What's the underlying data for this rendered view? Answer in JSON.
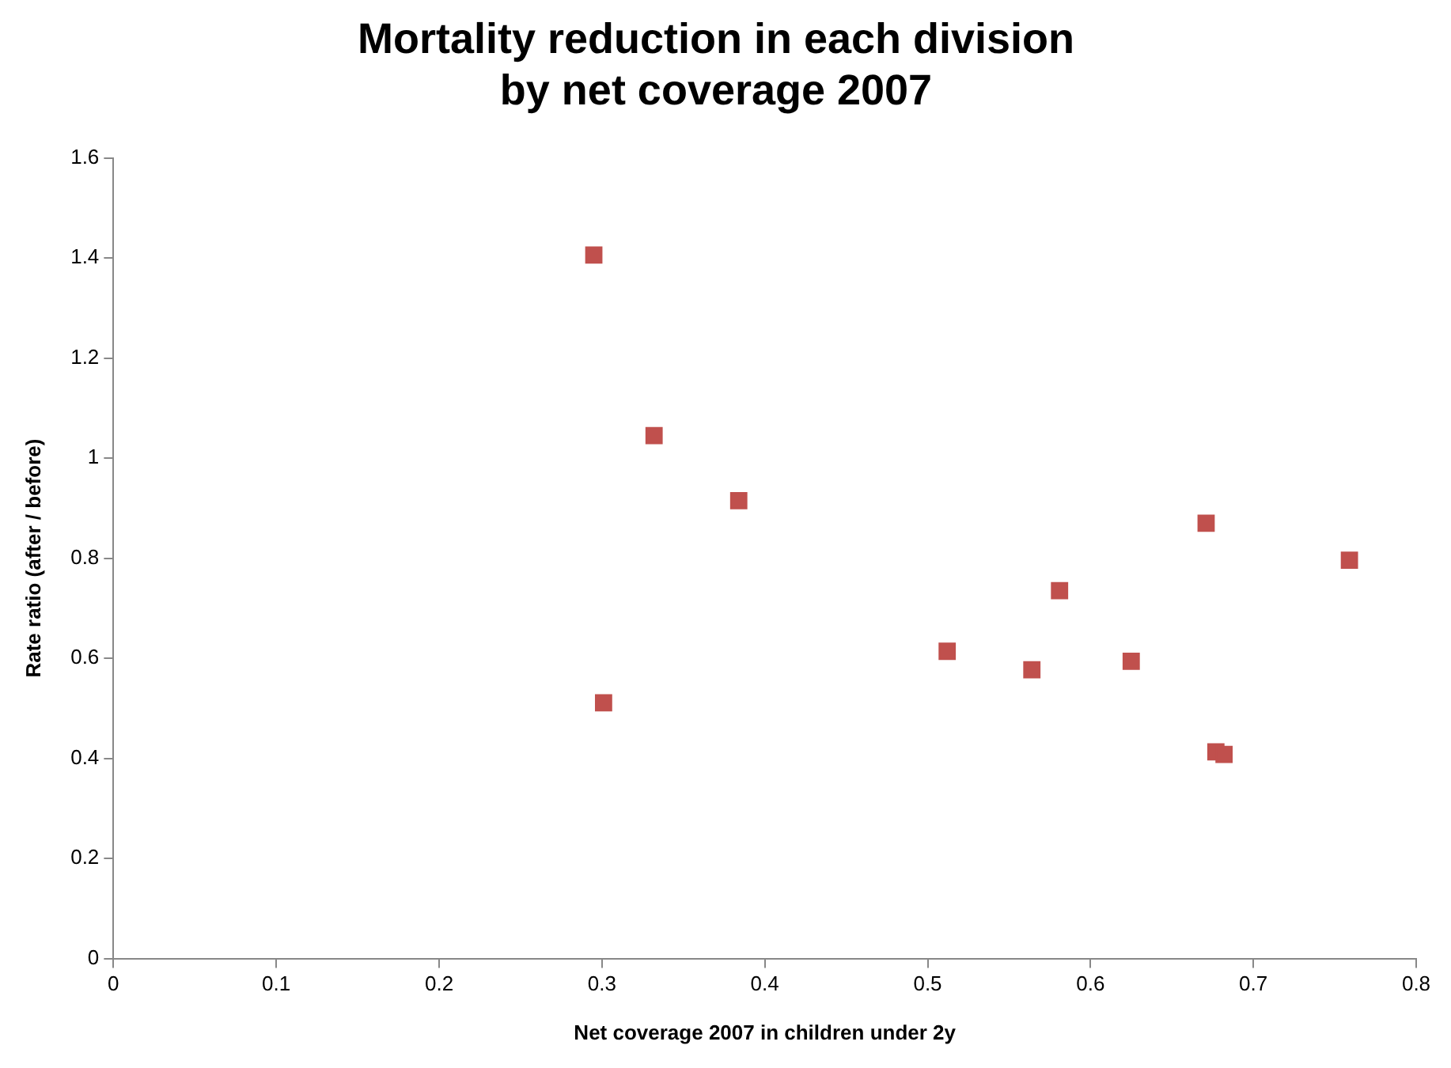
{
  "chart_data": {
    "type": "scatter",
    "title": "Mortality reduction in each division\nby net coverage 2007",
    "xlabel": "Net coverage 2007 in children under 2y",
    "ylabel": "Rate ratio (after / before)",
    "series": [
      {
        "color": "#c0504d",
        "x": [
          0.295,
          0.332,
          0.384,
          0.301,
          0.512,
          0.564,
          0.581,
          0.625,
          0.671,
          0.759,
          0.677,
          0.682
        ],
        "values": [
          1.406,
          1.045,
          0.915,
          0.511,
          0.614,
          0.577,
          0.735,
          0.594,
          0.87,
          0.796,
          0.413,
          0.408
        ]
      }
    ],
    "xlim": [
      0,
      0.8
    ],
    "xticks": [
      0,
      0.1,
      0.2,
      0.3,
      0.4,
      0.5,
      0.6,
      0.7,
      0.8
    ],
    "ylim": [
      0,
      1.6
    ],
    "yticks": [
      0,
      0.2,
      0.4,
      0.6,
      0.8,
      1,
      1.2,
      1.4,
      1.6
    ],
    "grid": false,
    "legend": false,
    "marker": "square"
  }
}
